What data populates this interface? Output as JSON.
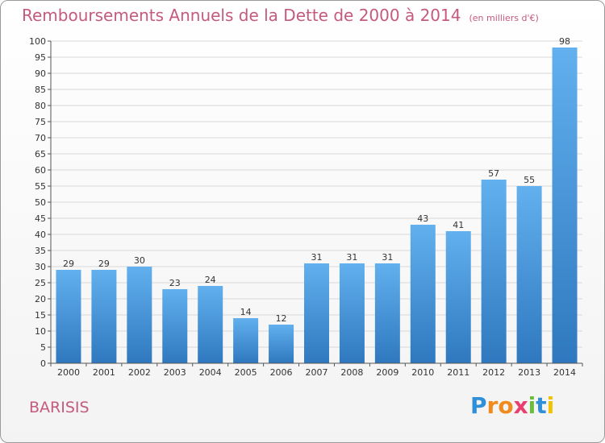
{
  "title": "Remboursements Annuels de la Dette de 2000 à 2014",
  "unit_note": "(en milliers d'€)",
  "commune": "BARISIS",
  "logo": {
    "letters": [
      "P",
      "r",
      "o",
      "x",
      "i",
      "t",
      "i"
    ],
    "colors": [
      "#2f8fd8",
      "#f08a1c",
      "#f08a1c",
      "#e83f6f",
      "#6cbd3c",
      "#2f8fd8",
      "#f2c200"
    ]
  },
  "colors": {
    "bar_light": "#62b0ee",
    "bar_dark": "#2f78bf",
    "title": "#c45a7c"
  },
  "chart_data": {
    "type": "bar",
    "categories": [
      "2000",
      "2001",
      "2002",
      "2003",
      "2004",
      "2005",
      "2006",
      "2007",
      "2008",
      "2009",
      "2010",
      "2011",
      "2012",
      "2013",
      "2014"
    ],
    "values": [
      29,
      29,
      30,
      23,
      24,
      14,
      12,
      31,
      31,
      31,
      43,
      41,
      57,
      55,
      98
    ],
    "title": "Remboursements Annuels de la Dette de 2000 à 2014",
    "xlabel": "",
    "ylabel": "",
    "ylim": [
      0,
      100
    ],
    "yticks": [
      0,
      5,
      10,
      15,
      20,
      25,
      30,
      35,
      40,
      45,
      50,
      55,
      60,
      65,
      70,
      75,
      80,
      85,
      90,
      95,
      100
    ],
    "grid": true,
    "legend": "none"
  }
}
